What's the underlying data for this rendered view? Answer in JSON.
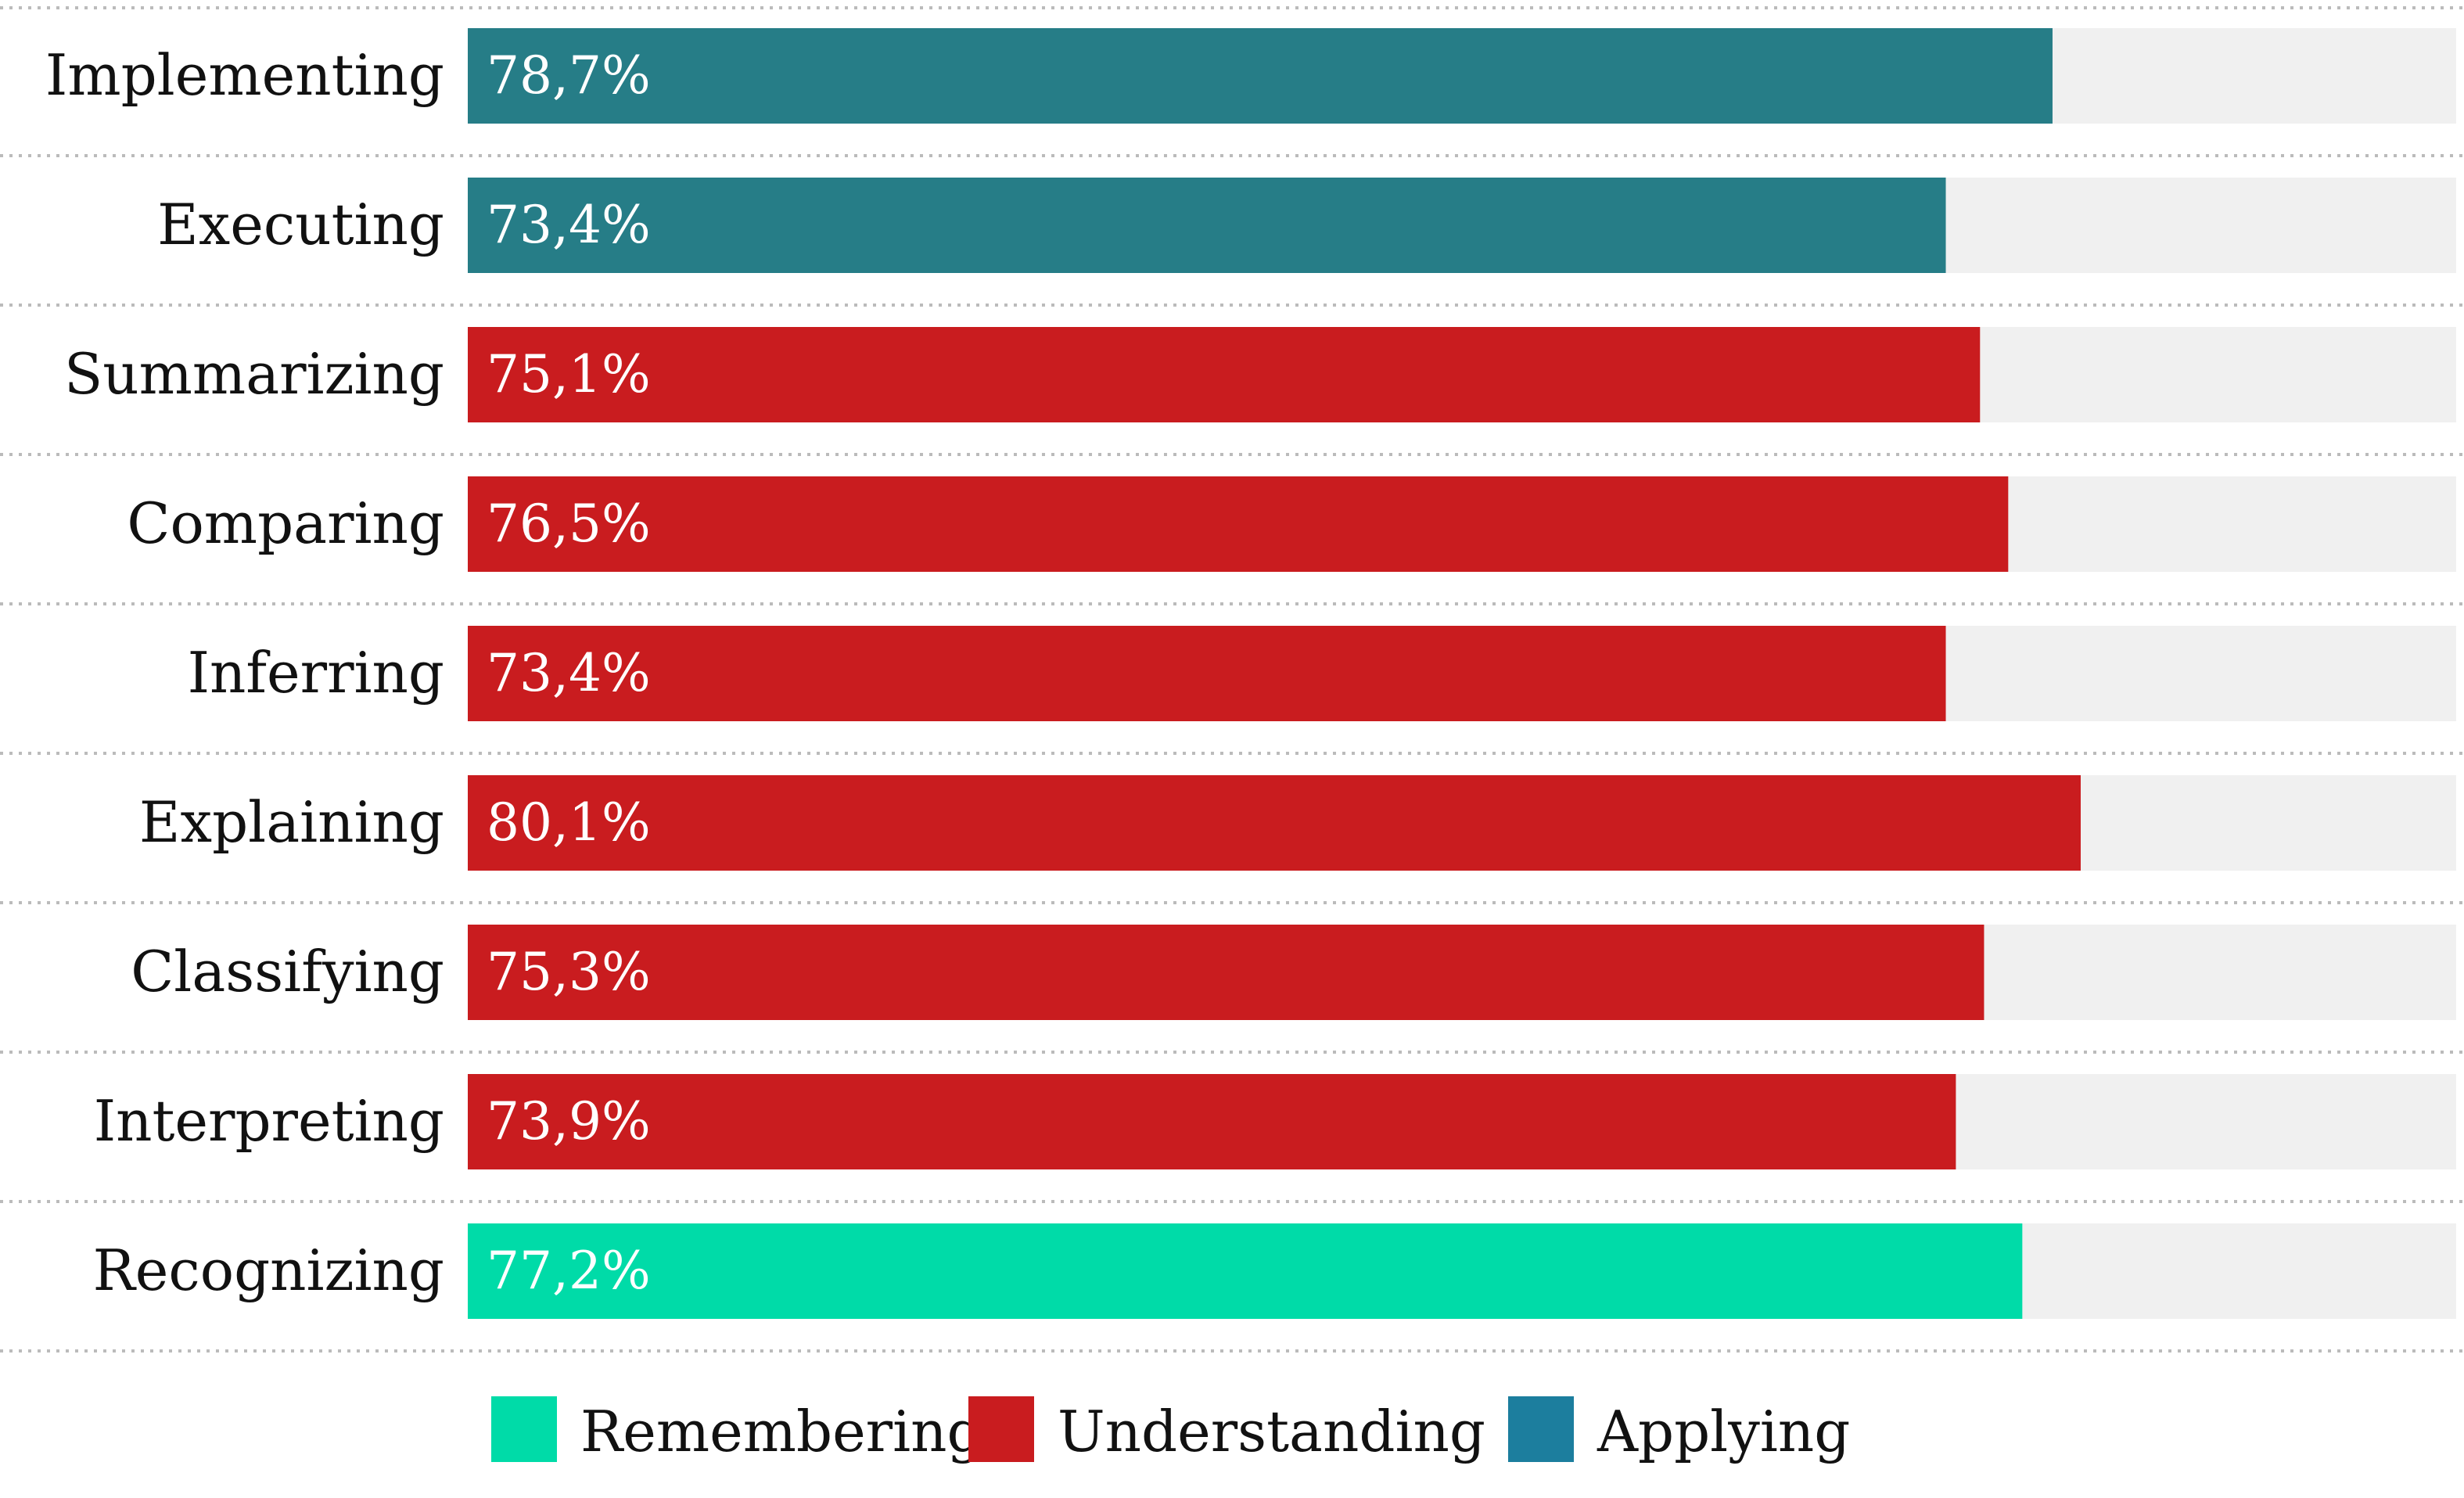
{
  "chart_data": {
    "type": "bar",
    "orientation": "horizontal",
    "categories": [
      "Implementing",
      "Executing",
      "Summarizing",
      "Comparing",
      "Inferring",
      "Explaining",
      "Classifying",
      "Interpreting",
      "Recognizing"
    ],
    "values": [
      78.7,
      73.4,
      75.1,
      76.5,
      73.4,
      80.1,
      75.3,
      73.9,
      77.2
    ],
    "value_labels": [
      "78,7%",
      "73,4%",
      "75,1%",
      "76,5%",
      "73,4%",
      "80,1%",
      "75,3%",
      "73,9%",
      "77,2%"
    ],
    "groups": [
      "Applying",
      "Applying",
      "Understanding",
      "Understanding",
      "Understanding",
      "Understanding",
      "Understanding",
      "Understanding",
      "Remembering"
    ],
    "xlim": [
      0,
      100
    ],
    "grid": "dotted horizontal separators between rows",
    "background_track": true,
    "legend": {
      "placement": "bottom",
      "entries": [
        {
          "name": "Remembering",
          "color": "#00DBA8"
        },
        {
          "name": "Understanding",
          "color": "#C91C1F"
        },
        {
          "name": "Applying",
          "color": "#1C7E9E"
        }
      ]
    },
    "colors": {
      "Applying_bars": "#267D87",
      "Understanding_bars": "#C91C1F",
      "Remembering_bars": "#00DBA8",
      "track": "#F0F0F0",
      "separator": "#BBBBBB"
    }
  }
}
